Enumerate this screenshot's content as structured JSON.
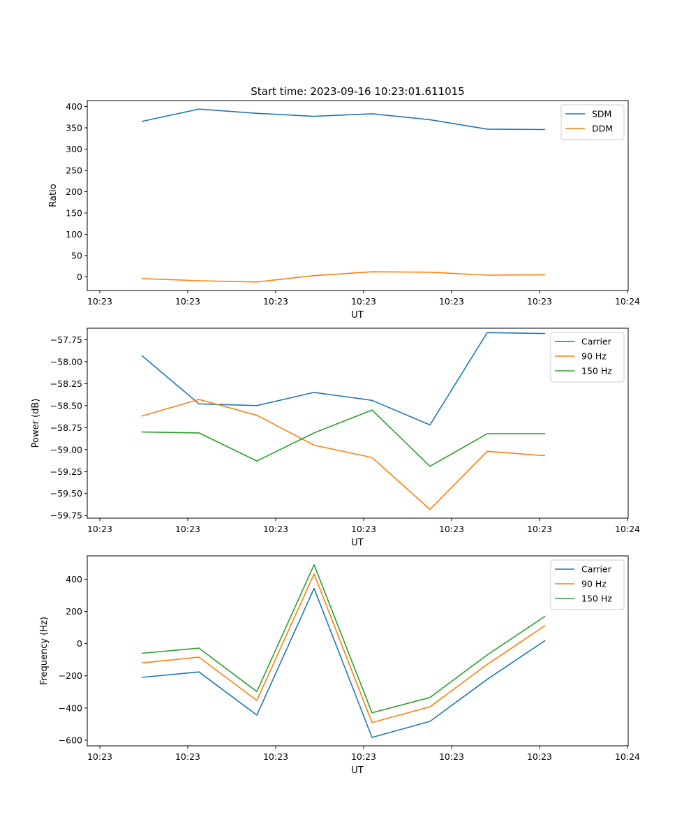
{
  "title": "Start time: 2023-09-16 10:23:01.611015",
  "colors": {
    "blue": "#1f77b4",
    "orange": "#ff7f0e",
    "green": "#2ca02c",
    "axis": "#000000",
    "legend_border": "#cccccc"
  },
  "chart_data": [
    {
      "type": "line",
      "title": "Start time: 2023-09-16 10:23:01.611015",
      "xlabel": "UT",
      "ylabel": "Ratio",
      "x_tick_labels": [
        "10:23",
        "10:23",
        "10:23",
        "10:23",
        "10:23",
        "10:23",
        "10:24"
      ],
      "ylim": [
        -32,
        414
      ],
      "yticks": [
        0,
        50,
        100,
        150,
        200,
        250,
        300,
        350,
        400
      ],
      "ytick_labels": [
        "0",
        "50",
        "100",
        "150",
        "200",
        "250",
        "300",
        "350",
        "400"
      ],
      "legend": "top-right",
      "series": [
        {
          "name": "SDM",
          "color": "#1f77b4",
          "values": [
            365,
            394,
            384,
            377,
            383,
            369,
            347,
            346
          ]
        },
        {
          "name": "DDM",
          "color": "#ff7f0e",
          "values": [
            -4,
            -9,
            -12,
            3,
            12,
            11,
            4,
            5
          ]
        }
      ]
    },
    {
      "type": "line",
      "xlabel": "UT",
      "ylabel": "Power (dB)",
      "x_tick_labels": [
        "10:23",
        "10:23",
        "10:23",
        "10:23",
        "10:23",
        "10:23",
        "10:24"
      ],
      "ylim": [
        -59.78,
        -57.62
      ],
      "yticks": [
        -59.75,
        -59.5,
        -59.25,
        -59.0,
        -58.75,
        -58.5,
        -58.25,
        -58.0,
        -57.75
      ],
      "ytick_labels": [
        "−59.75",
        "−59.50",
        "−59.25",
        "−59.00",
        "−58.75",
        "−58.50",
        "−58.25",
        "−58.00",
        "−57.75"
      ],
      "legend": "top-right",
      "series": [
        {
          "name": "Carrier",
          "color": "#1f77b4",
          "values": [
            -57.93,
            -58.48,
            -58.5,
            -58.35,
            -58.44,
            -58.72,
            -57.67,
            -57.68
          ]
        },
        {
          "name": "90 Hz",
          "color": "#ff7f0e",
          "values": [
            -58.62,
            -58.43,
            -58.61,
            -58.95,
            -59.09,
            -59.68,
            -59.02,
            -59.07
          ]
        },
        {
          "name": "150 Hz",
          "color": "#2ca02c",
          "values": [
            -58.8,
            -58.81,
            -59.13,
            -58.81,
            -58.55,
            -59.19,
            -58.82,
            -58.82
          ]
        }
      ]
    },
    {
      "type": "line",
      "xlabel": "UT",
      "ylabel": "Frequency (Hz)",
      "x_tick_labels": [
        "10:23",
        "10:23",
        "10:23",
        "10:23",
        "10:23",
        "10:23",
        "10:24"
      ],
      "ylim": [
        -635,
        545
      ],
      "yticks": [
        -600,
        -400,
        -200,
        0,
        200,
        400
      ],
      "ytick_labels": [
        "−600",
        "−400",
        "−200",
        "0",
        "200",
        "400"
      ],
      "legend": "top-right",
      "series": [
        {
          "name": "Carrier",
          "color": "#1f77b4",
          "values": [
            -210,
            -176,
            -444,
            343,
            -583,
            -483,
            -222,
            19
          ]
        },
        {
          "name": "90 Hz",
          "color": "#ff7f0e",
          "values": [
            -120,
            -84,
            -353,
            433,
            -490,
            -393,
            -129,
            112
          ]
        },
        {
          "name": "150 Hz",
          "color": "#2ca02c",
          "values": [
            -60,
            -28,
            -298,
            490,
            -430,
            -335,
            -70,
            170
          ]
        }
      ]
    }
  ]
}
